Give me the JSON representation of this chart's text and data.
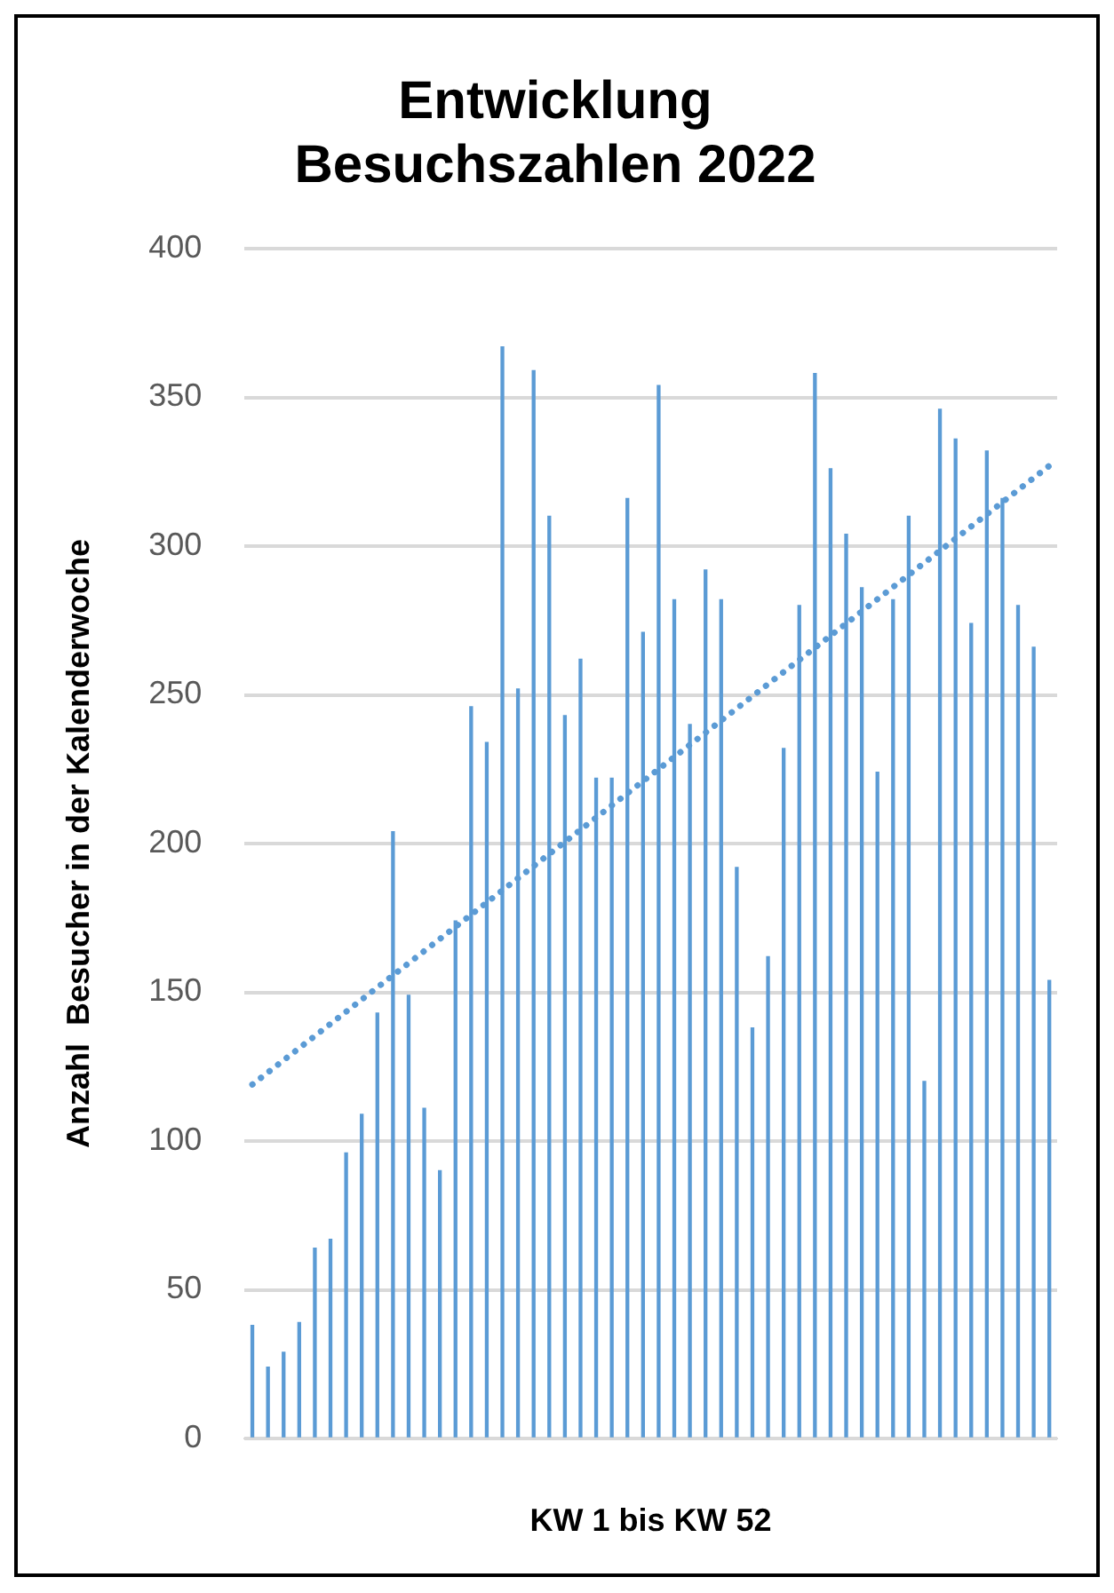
{
  "chart_data": {
    "type": "bar",
    "title": "Entwicklung\nBesuchszahlen 2022",
    "xlabel": "KW 1 bis KW 52",
    "ylabel": "Anzahl  Besucher in der Kalenderwoche",
    "categories": [
      null,
      null,
      null,
      null,
      null,
      null,
      null,
      null,
      null,
      null,
      null,
      null,
      null,
      null,
      null,
      null,
      null,
      null,
      null,
      null,
      null,
      null,
      null,
      null,
      null,
      null,
      null,
      null,
      null,
      null,
      null,
      null,
      null,
      null,
      null,
      null,
      null,
      null,
      null,
      null,
      null,
      null,
      null,
      null,
      null,
      null,
      null,
      null,
      null,
      null,
      null,
      null
    ],
    "series": [
      {
        "color": "#5b9bd5",
        "values": [
          38,
          24,
          29,
          39,
          64,
          67,
          96,
          109,
          143,
          204,
          149,
          111,
          90,
          174,
          246,
          234,
          367,
          252,
          359,
          310,
          243,
          262,
          222,
          222,
          316,
          271,
          354,
          282,
          240,
          292,
          282,
          192,
          138,
          162,
          232,
          280,
          358,
          326,
          304,
          286,
          224,
          282,
          310,
          120,
          346,
          336,
          274,
          332,
          316,
          280,
          266,
          154
        ]
      },
      {
        "type": "line",
        "color": "#5b9bd5",
        "line_style": "dotted",
        "values": [
          119,
          null,
          null,
          null,
          null,
          null,
          null,
          null,
          null,
          null,
          null,
          null,
          null,
          null,
          null,
          null,
          null,
          null,
          null,
          null,
          null,
          null,
          null,
          null,
          null,
          null,
          null,
          null,
          null,
          null,
          null,
          null,
          null,
          null,
          null,
          null,
          null,
          null,
          null,
          null,
          null,
          null,
          null,
          null,
          null,
          null,
          null,
          null,
          null,
          null,
          null,
          327
        ]
      }
    ],
    "ylim": [
      0,
      400
    ],
    "yticks": [
      0,
      50,
      100,
      150,
      200,
      250,
      300,
      350,
      400
    ],
    "grid": "y",
    "legend": false
  }
}
